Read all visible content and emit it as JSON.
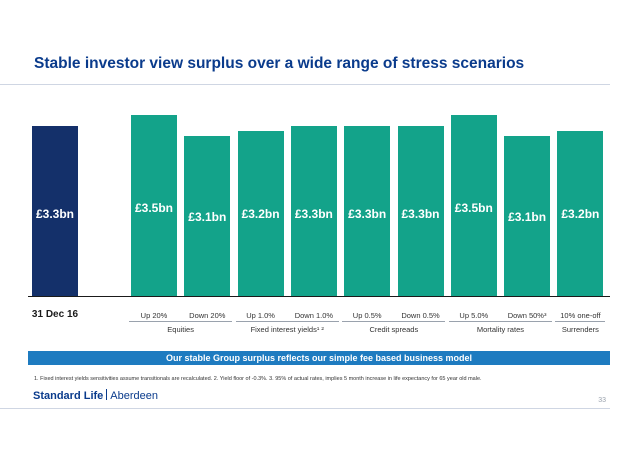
{
  "title": "Stable investor view surplus over a wide range of stress scenarios",
  "colors": {
    "baseline": "#14306a",
    "stress": "#13a38a",
    "banner": "#1e7bc0",
    "title": "#0a3b8c"
  },
  "chart_data": {
    "type": "bar",
    "title": "",
    "xlabel": "",
    "ylabel": "",
    "unit": "£bn",
    "ylim": [
      0,
      3.6
    ],
    "categories": [
      "31 Dec 16",
      "Up 20%",
      "Down 20%",
      "Up 1.0%",
      "Down 1.0%",
      "Up 0.5%",
      "Down 0.5%",
      "Up 5.0%",
      "Down 50%³",
      "10% one-off"
    ],
    "values": [
      3.3,
      3.5,
      3.1,
      3.2,
      3.3,
      3.3,
      3.3,
      3.5,
      3.1,
      3.2
    ],
    "data_labels": [
      "£3.3bn",
      "£3.5bn",
      "£3.1bn",
      "£3.2bn",
      "£3.3bn",
      "£3.3bn",
      "£3.3bn",
      "£3.5bn",
      "£3.1bn",
      "£3.2bn"
    ],
    "groups": [
      {
        "label": "Equities",
        "start": 1,
        "end": 2
      },
      {
        "label": "Fixed interest yields¹ ²",
        "start": 3,
        "end": 4
      },
      {
        "label": "Credit spreads",
        "start": 5,
        "end": 6
      },
      {
        "label": "Mortality rates",
        "start": 7,
        "end": 8
      },
      {
        "label": "Surrenders",
        "start": 9,
        "end": 9
      }
    ],
    "grid": false,
    "legend": "none"
  },
  "banner": "Our stable Group surplus reflects our simple fee based business model",
  "footnote": "1. Fixed interest yields sensitivities assume transitionals are recalculated.  2. Yield floor of -0.3%.  3. 95% of actual rates, implies 5 month increase in life expectancy for 65 year old male.",
  "logo": {
    "part1": "Standard Life",
    "part2": "Aberdeen"
  },
  "page_number": "33"
}
